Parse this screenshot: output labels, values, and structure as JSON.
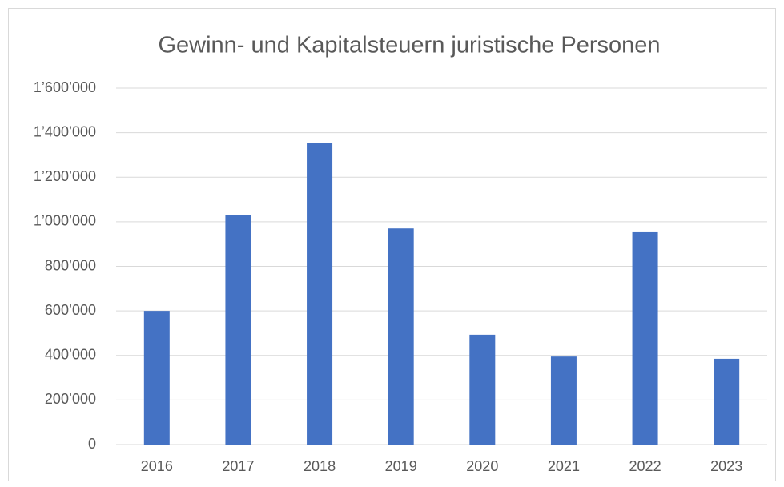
{
  "chart_data": {
    "type": "bar",
    "title": "Gewinn- und Kapitalsteuern juristische Personen",
    "categories": [
      "2016",
      "2017",
      "2018",
      "2019",
      "2020",
      "2021",
      "2022",
      "2023"
    ],
    "values": [
      600000,
      1030000,
      1355000,
      970000,
      493000,
      395000,
      953000,
      385000
    ],
    "color": "#4472c4",
    "ylim": [
      0,
      1600000
    ],
    "yticks": [
      0,
      {
        "value": 200000,
        "label": "200’000"
      },
      {
        "value": 400000,
        "label": "400’000"
      },
      {
        "value": 600000,
        "label": "600’000"
      },
      {
        "value": 800000,
        "label": "800’000"
      },
      {
        "value": 1000000,
        "label": "1’000’000"
      },
      {
        "value": 1200000,
        "label": "1’200’000"
      },
      {
        "value": 1400000,
        "label": "1’400’000"
      },
      {
        "value": 1600000,
        "label": "1’600’000"
      }
    ],
    "grid": true
  }
}
